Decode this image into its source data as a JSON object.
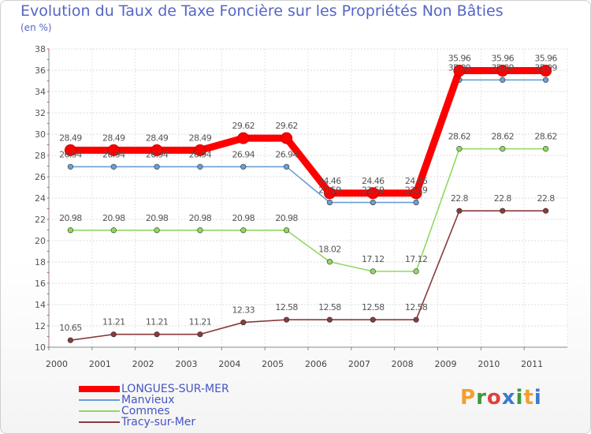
{
  "header": {
    "title": "Evolution du Taux de Taxe Foncière sur les Propriétés Non Bâties",
    "subtitle": "(en %)"
  },
  "logo": {
    "text": "Proxiti",
    "colors": [
      "#f0a030",
      "#3a9a3a",
      "#e04040",
      "#3a7ad0",
      "#3a9a3a",
      "#f0a030",
      "#3a7ad0"
    ]
  },
  "chart_data": {
    "type": "line",
    "categories": [
      "2000",
      "2001",
      "2002",
      "2003",
      "2004",
      "2005",
      "2006",
      "2007",
      "2008",
      "2009",
      "2010",
      "2011"
    ],
    "ylim": [
      10,
      38
    ],
    "yticks": [
      10,
      12,
      14,
      16,
      18,
      20,
      22,
      24,
      26,
      28,
      30,
      32,
      34,
      36,
      38
    ],
    "grid": true,
    "legend_position": "bottom-left",
    "series": [
      {
        "name": "LONGUES-SUR-MER",
        "color": "#ff0000",
        "values": [
          28.49,
          28.49,
          28.49,
          28.49,
          29.62,
          29.62,
          24.46,
          24.46,
          24.46,
          35.96,
          35.96,
          35.96
        ],
        "labels": [
          "28.49",
          "28.49",
          "28.49",
          "28.49",
          "29.62",
          "29.62",
          "24.46",
          "24.46",
          "24.46",
          "35.96",
          "35.96",
          "35.96"
        ]
      },
      {
        "name": "Manvieux",
        "color": "#6a9fd0",
        "values": [
          26.94,
          26.94,
          26.94,
          26.94,
          26.94,
          26.94,
          23.59,
          23.59,
          23.59,
          35.09,
          35.09,
          35.09
        ],
        "labels": [
          "26.94",
          "26.94",
          "26.94",
          "26.94",
          "26.94",
          "26.94",
          "23.59",
          "23.59",
          "23.59",
          "35.09",
          "35.09",
          "35.09"
        ]
      },
      {
        "name": "Commes",
        "color": "#90d860",
        "values": [
          20.98,
          20.98,
          20.98,
          20.98,
          20.98,
          20.98,
          18.02,
          17.12,
          17.12,
          28.62,
          28.62,
          28.62
        ],
        "labels": [
          "20.98",
          "20.98",
          "20.98",
          "20.98",
          "20.98",
          "20.98",
          "18.02",
          "17.12",
          "17.12",
          "28.62",
          "28.62",
          "28.62"
        ]
      },
      {
        "name": "Tracy-sur-Mer",
        "color": "#8a3a3a",
        "values": [
          10.65,
          11.21,
          11.21,
          11.21,
          12.33,
          12.58,
          12.58,
          12.58,
          12.58,
          22.8,
          22.8,
          22.8
        ],
        "labels": [
          "10.65",
          "11.21",
          "11.21",
          "11.21",
          "12.33",
          "12.58",
          "12.58",
          "12.58",
          "12.58",
          "22.8",
          "22.8",
          "22.8"
        ]
      }
    ]
  }
}
